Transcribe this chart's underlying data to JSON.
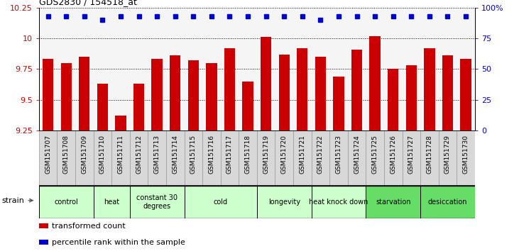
{
  "title": "GDS2830 / 154518_at",
  "samples": [
    "GSM151707",
    "GSM151708",
    "GSM151709",
    "GSM151710",
    "GSM151711",
    "GSM151712",
    "GSM151713",
    "GSM151714",
    "GSM151715",
    "GSM151716",
    "GSM151717",
    "GSM151718",
    "GSM151719",
    "GSM151720",
    "GSM151721",
    "GSM151722",
    "GSM151723",
    "GSM151724",
    "GSM151725",
    "GSM151726",
    "GSM151727",
    "GSM151728",
    "GSM151729",
    "GSM151730"
  ],
  "bar_values": [
    9.83,
    9.8,
    9.85,
    9.63,
    9.37,
    9.63,
    9.83,
    9.86,
    9.82,
    9.8,
    9.92,
    9.65,
    10.01,
    9.87,
    9.92,
    9.85,
    9.69,
    9.91,
    10.02,
    9.75,
    9.78,
    9.92,
    9.86,
    9.83
  ],
  "dot_percentiles": [
    93,
    93,
    93,
    90,
    93,
    93,
    93,
    93,
    93,
    93,
    93,
    93,
    93,
    93,
    93,
    90,
    93,
    93,
    93,
    93,
    93,
    93,
    93,
    93
  ],
  "bar_color": "#cc0000",
  "dot_color": "#0000cc",
  "ylim_left": [
    9.25,
    10.25
  ],
  "yticks_left": [
    9.25,
    9.5,
    9.75,
    10.0,
    10.25
  ],
  "ytick_labels_left": [
    "9.25",
    "9.5",
    "9.75",
    "10",
    "10.25"
  ],
  "ylim_right": [
    0,
    100
  ],
  "yticks_right": [
    0,
    25,
    50,
    75,
    100
  ],
  "ytick_labels_right": [
    "0",
    "25",
    "50",
    "75",
    "100%"
  ],
  "groups": [
    {
      "label": "control",
      "start": 0,
      "end": 3,
      "color": "#ccffcc"
    },
    {
      "label": "heat",
      "start": 3,
      "end": 5,
      "color": "#ccffcc"
    },
    {
      "label": "constant 30\ndegrees",
      "start": 5,
      "end": 8,
      "color": "#ccffcc"
    },
    {
      "label": "cold",
      "start": 8,
      "end": 12,
      "color": "#ccffcc"
    },
    {
      "label": "longevity",
      "start": 12,
      "end": 15,
      "color": "#ccffcc"
    },
    {
      "label": "heat knock down",
      "start": 15,
      "end": 18,
      "color": "#ccffcc"
    },
    {
      "label": "starvation",
      "start": 18,
      "end": 21,
      "color": "#66dd66"
    },
    {
      "label": "desiccation",
      "start": 21,
      "end": 24,
      "color": "#66dd66"
    }
  ],
  "legend_items": [
    {
      "label": "transformed count",
      "color": "#cc0000"
    },
    {
      "label": "percentile rank within the sample",
      "color": "#0000cc"
    }
  ],
  "strain_label": "strain",
  "tick_bg": "#d8d8d8",
  "plot_bg": "#f5f5f5"
}
